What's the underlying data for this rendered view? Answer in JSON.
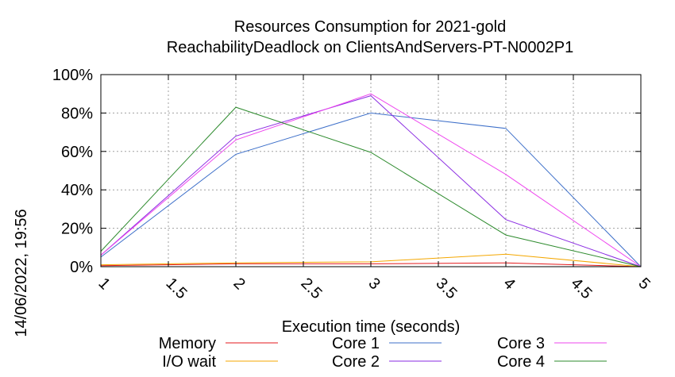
{
  "chart_data": {
    "type": "line",
    "title_line1": "Resources Consumption for 2021-gold",
    "title_line2": "ReachabilityDeadlock on ClientsAndServers-PT-N0002P1",
    "xlabel": "Execution time (seconds)",
    "ylabel": "",
    "timestamp": "14/06/2022, 19:56",
    "xlim": [
      1,
      5
    ],
    "ylim": [
      0,
      100
    ],
    "x_ticks": [
      1,
      1.5,
      2,
      2.5,
      3,
      3.5,
      4,
      4.5,
      5
    ],
    "x_tick_labels": [
      "1",
      "1.5",
      "2",
      "2.5",
      "3",
      "3.5",
      "4",
      "4.5",
      "5"
    ],
    "y_ticks": [
      0,
      20,
      40,
      60,
      80,
      100
    ],
    "y_tick_labels": [
      "0%",
      "20%",
      "40%",
      "60%",
      "80%",
      "100%"
    ],
    "grid": true,
    "legend_placement": "bottom",
    "series": [
      {
        "name": "Memory",
        "color": "#e41a1c",
        "x": [
          1,
          2,
          3,
          4,
          5
        ],
        "values": [
          0.5,
          1.5,
          1.5,
          2,
          0
        ]
      },
      {
        "name": "I/O wait",
        "color": "#f4a700",
        "x": [
          1,
          2,
          3,
          4,
          5
        ],
        "values": [
          1,
          2,
          2.5,
          6.5,
          0
        ]
      },
      {
        "name": "Core 1",
        "color": "#3d6fc9",
        "x": [
          1,
          2,
          3,
          4,
          5
        ],
        "values": [
          5,
          58.5,
          80,
          72,
          0
        ]
      },
      {
        "name": "Core 2",
        "color": "#8a2be2",
        "x": [
          1,
          2,
          3,
          4,
          5
        ],
        "values": [
          6,
          68,
          89,
          24.5,
          0
        ]
      },
      {
        "name": "Core 3",
        "color": "#ee44ee",
        "x": [
          1,
          2,
          3,
          4,
          5
        ],
        "values": [
          6,
          66,
          90,
          48,
          0
        ]
      },
      {
        "name": "Core 4",
        "color": "#2e8b2e",
        "x": [
          1,
          2,
          3,
          4,
          5
        ],
        "values": [
          8,
          83,
          59.5,
          16.5,
          0
        ]
      }
    ]
  }
}
